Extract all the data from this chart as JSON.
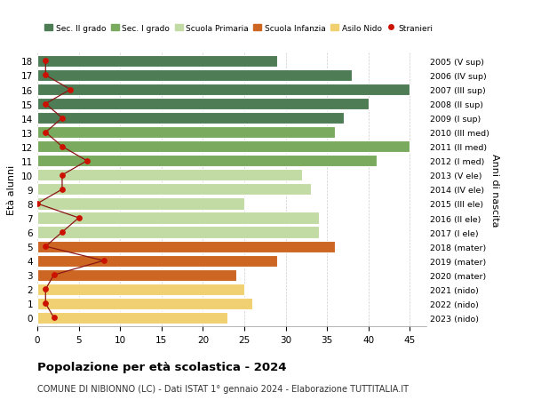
{
  "ages": [
    18,
    17,
    16,
    15,
    14,
    13,
    12,
    11,
    10,
    9,
    8,
    7,
    6,
    5,
    4,
    3,
    2,
    1,
    0
  ],
  "bar_values": [
    29,
    38,
    45,
    40,
    37,
    36,
    45,
    41,
    32,
    33,
    25,
    34,
    34,
    36,
    29,
    24,
    25,
    26,
    23
  ],
  "right_labels": [
    "2005 (V sup)",
    "2006 (IV sup)",
    "2007 (III sup)",
    "2008 (II sup)",
    "2009 (I sup)",
    "2010 (III med)",
    "2011 (II med)",
    "2012 (I med)",
    "2013 (V ele)",
    "2014 (IV ele)",
    "2015 (III ele)",
    "2016 (II ele)",
    "2017 (I ele)",
    "2018 (mater)",
    "2019 (mater)",
    "2020 (mater)",
    "2021 (nido)",
    "2022 (nido)",
    "2023 (nido)"
  ],
  "bar_colors": [
    "#4d7c55",
    "#4d7c55",
    "#4d7c55",
    "#4d7c55",
    "#4d7c55",
    "#7aaa5e",
    "#7aaa5e",
    "#7aaa5e",
    "#c2dba5",
    "#c2dba5",
    "#c2dba5",
    "#c2dba5",
    "#c2dba5",
    "#cc6622",
    "#cc6622",
    "#cc6622",
    "#f0d070",
    "#f0d070",
    "#f0d070"
  ],
  "stranieri_values": [
    1,
    1,
    4,
    1,
    3,
    1,
    3,
    6,
    3,
    3,
    0,
    5,
    3,
    1,
    8,
    2,
    1,
    1,
    2
  ],
  "legend_labels": [
    "Sec. II grado",
    "Sec. I grado",
    "Scuola Primaria",
    "Scuola Infanzia",
    "Asilo Nido",
    "Stranieri"
  ],
  "legend_colors": [
    "#4d7c55",
    "#7aaa5e",
    "#c2dba5",
    "#cc6622",
    "#f0d070",
    "#cc1100"
  ],
  "ylabel": "Età alunni",
  "right_ylabel": "Anni di nascita",
  "title": "Popolazione per età scolastica - 2024",
  "subtitle": "COMUNE DI NIBIONNO (LC) - Dati ISTAT 1° gennaio 2024 - Elaborazione TUTTITALIA.IT",
  "xlim": [
    0,
    47
  ],
  "xticks": [
    0,
    5,
    10,
    15,
    20,
    25,
    30,
    35,
    40,
    45
  ],
  "background_color": "#ffffff",
  "grid_color": "#cccccc"
}
